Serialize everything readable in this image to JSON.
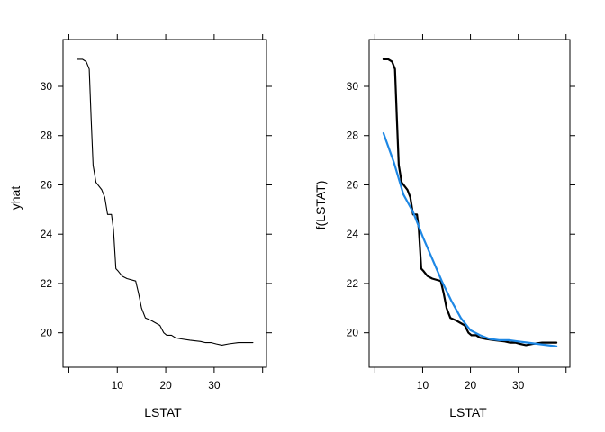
{
  "chart_data": [
    {
      "type": "line",
      "xlabel": "LSTAT",
      "ylabel": "yhat",
      "xlim": [
        -1.2,
        40.8
      ],
      "ylim": [
        18.6,
        31.9
      ],
      "x_ticks": [
        10,
        20,
        30
      ],
      "y_ticks": [
        20,
        22,
        24,
        26,
        28,
        30
      ],
      "grid": false,
      "series": [
        {
          "color": "#000000",
          "x": [
            1.8,
            2.8,
            3.6,
            4.2,
            4.6,
            5.0,
            5.6,
            6.8,
            7.4,
            8.0,
            8.8,
            9.2,
            9.7,
            10.2,
            11.0,
            12.0,
            13.8,
            14.4,
            15.0,
            15.8,
            17.0,
            18.8,
            19.6,
            20.2,
            21.2,
            22.0,
            23.2,
            25.0,
            27.2,
            28.2,
            29.4,
            30.4,
            31.6,
            33.0,
            35.0,
            38.0
          ],
          "values": [
            31.1,
            31.1,
            31.0,
            30.7,
            28.7,
            26.8,
            26.1,
            25.8,
            25.5,
            24.8,
            24.8,
            24.2,
            22.6,
            22.5,
            22.3,
            22.2,
            22.1,
            21.6,
            21.0,
            20.6,
            20.5,
            20.3,
            20.0,
            19.9,
            19.9,
            19.8,
            19.75,
            19.7,
            19.65,
            19.6,
            19.6,
            19.55,
            19.5,
            19.55,
            19.6,
            19.6
          ]
        }
      ]
    },
    {
      "type": "line",
      "xlabel": "LSTAT",
      "ylabel": "f(LSTAT)",
      "xlim": [
        -1.2,
        40.8
      ],
      "ylim": [
        18.6,
        31.9
      ],
      "x_ticks": [
        10,
        20,
        30
      ],
      "y_ticks": [
        20,
        22,
        24,
        26,
        28,
        30
      ],
      "grid": false,
      "series": [
        {
          "color": "#000000",
          "x": [
            1.8,
            2.8,
            3.6,
            4.2,
            4.6,
            5.0,
            5.6,
            6.8,
            7.4,
            8.0,
            8.8,
            9.2,
            9.7,
            10.2,
            11.0,
            12.0,
            13.8,
            14.4,
            15.0,
            15.8,
            17.0,
            18.8,
            19.6,
            20.2,
            21.2,
            22.0,
            23.2,
            25.0,
            27.2,
            28.2,
            29.4,
            30.4,
            31.6,
            33.0,
            35.0,
            38.0
          ],
          "values": [
            31.1,
            31.1,
            31.0,
            30.7,
            28.7,
            26.8,
            26.1,
            25.8,
            25.5,
            24.8,
            24.8,
            24.2,
            22.6,
            22.5,
            22.3,
            22.2,
            22.1,
            21.6,
            21.0,
            20.6,
            20.5,
            20.3,
            20.0,
            19.9,
            19.9,
            19.8,
            19.75,
            19.7,
            19.65,
            19.6,
            19.6,
            19.55,
            19.5,
            19.55,
            19.6,
            19.6
          ]
        },
        {
          "color": "#1E88E5",
          "x": [
            1.8,
            4.0,
            6.0,
            8.0,
            10.0,
            12.0,
            14.0,
            16.0,
            18.0,
            20.0,
            22.0,
            24.0,
            26.0,
            28.0,
            30.0,
            32.0,
            34.0,
            36.0,
            38.0
          ],
          "values": [
            28.1,
            26.9,
            25.6,
            24.9,
            23.9,
            23.0,
            22.1,
            21.3,
            20.6,
            20.1,
            19.9,
            19.75,
            19.7,
            19.7,
            19.65,
            19.6,
            19.55,
            19.5,
            19.45
          ]
        }
      ]
    }
  ]
}
